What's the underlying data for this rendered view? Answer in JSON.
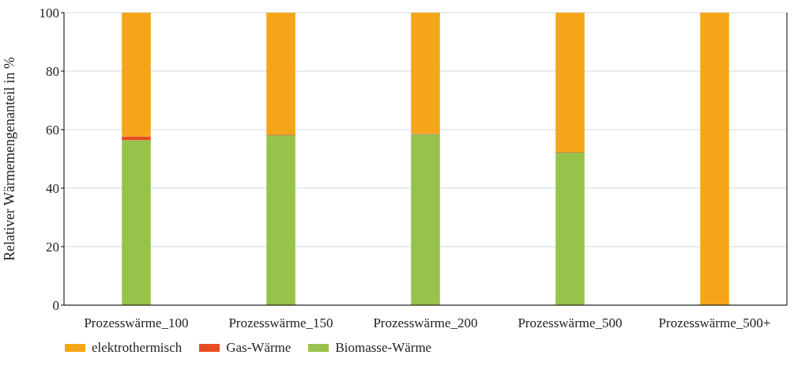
{
  "chart_data": {
    "type": "bar",
    "stacked": true,
    "ylabel": "Relativer Wärmemengenanteil in %",
    "categories": [
      "Prozesswärme_100",
      "Prozesswärme_150",
      "Prozesswärme_200",
      "Prozesswärme_500",
      "Prozesswärme_500+"
    ],
    "series": [
      {
        "name": "Biomasse-Wärme",
        "color": "#98c34b",
        "values": [
          56.4,
          58.2,
          58.5,
          52.2,
          0
        ]
      },
      {
        "name": "Gas-Wärme",
        "color": "#e84c22",
        "values": [
          1.3,
          0.2,
          0.2,
          0.2,
          0
        ]
      },
      {
        "name": "elektrothermisch",
        "color": "#f5a618",
        "values": [
          42.3,
          41.6,
          41.3,
          47.6,
          100
        ]
      }
    ],
    "ylim": [
      0,
      100
    ],
    "yticks": [
      0,
      20,
      40,
      60,
      80,
      100
    ],
    "grid": "y",
    "legend": "bottom left"
  }
}
